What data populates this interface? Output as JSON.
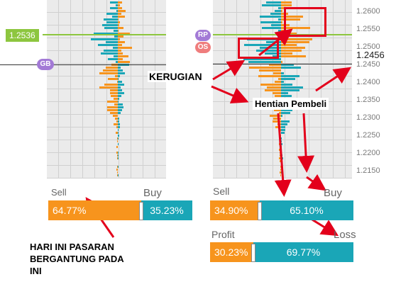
{
  "left_chart": {
    "current_price": "1.2536",
    "badges": {
      "gb": "GB"
    }
  },
  "right_chart": {
    "current_price": "1.2456",
    "badges": {
      "rp": "RP",
      "os": "OS"
    },
    "ticks": [
      "1.2600",
      "1.2550",
      "1.2500",
      "1.2450",
      "1.2400",
      "1.2350",
      "1.2300",
      "1.2250",
      "1.2200",
      "1.2150"
    ]
  },
  "left_ratio": {
    "sell_label": "Sell",
    "buy_label": "Buy",
    "sell_pct": "64.77%",
    "buy_pct": "35.23%",
    "sell_fraction": 0.6477
  },
  "right_ratio": {
    "sell_label": "Sell",
    "buy_label": "Buy",
    "sell_pct": "34.90%",
    "buy_pct": "65.10%",
    "sell_fraction": 0.349
  },
  "profit_ratio": {
    "profit_label": "Profit",
    "loss_label": "Loss",
    "profit_pct": "30.23%",
    "loss_pct": "69.77%",
    "profit_fraction": 0.3023
  },
  "annotations": {
    "kerugian": "KERUGIAN",
    "hentian": "Hentian Pembeli",
    "hari_ini": [
      "HARI INI PASARAN",
      "BERGANTUNG PADA",
      "INI"
    ]
  },
  "colors": {
    "sell": "#f7941d",
    "buy": "#1aa6b7",
    "price_line": "#8dc63f",
    "arrow": "#e3001b"
  }
}
